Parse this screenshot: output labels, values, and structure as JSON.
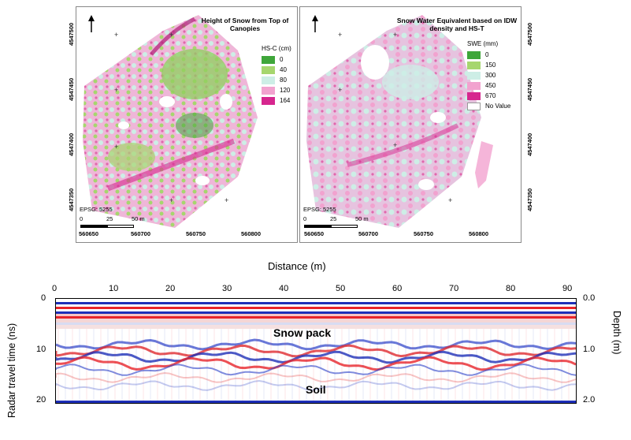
{
  "map_left": {
    "title": "Height of Snow from Top of Canopies",
    "legend_title": "HS-C (cm)",
    "legend": [
      {
        "label": "0",
        "color": "#3fa63a"
      },
      {
        "label": "40",
        "color": "#a6d66e"
      },
      {
        "label": "80",
        "color": "#cdeee6"
      },
      {
        "label": "120",
        "color": "#f2a2cf"
      },
      {
        "label": "164",
        "color": "#d6268e"
      }
    ],
    "epsg": "EPSG: 5255",
    "scale_labels": [
      "0",
      "25",
      "50 m"
    ],
    "easting_labels": [
      "560650",
      "560700",
      "560750",
      "560800"
    ],
    "northing_labels": [
      "4547500",
      "4547450",
      "4547400",
      "4547350"
    ]
  },
  "map_right": {
    "title": "Snow Water Equivalent based on IDW density and HS-T",
    "legend_title": "SWE (mm)",
    "legend": [
      {
        "label": "0",
        "color": "#3fa63a"
      },
      {
        "label": "150",
        "color": "#a6d66e"
      },
      {
        "label": "300",
        "color": "#cdeee6"
      },
      {
        "label": "450",
        "color": "#f2a2cf"
      },
      {
        "label": "670",
        "color": "#d6268e"
      },
      {
        "label": "No Value",
        "color": "#ffffff"
      }
    ],
    "epsg": "EPSG: 5255",
    "scale_labels": [
      "0",
      "25",
      "50 m"
    ],
    "easting_labels": [
      "560650",
      "560700",
      "560750",
      "560800"
    ],
    "northing_labels": [
      "4547500",
      "4547450",
      "4547400",
      "4547350"
    ]
  },
  "gpr": {
    "xlabel": "Distance (m)",
    "ylabel_left": "Radar travel time (ns)",
    "ylabel_right": "Depth (m)",
    "x_ticks": [
      "0",
      "10",
      "20",
      "30",
      "40",
      "50",
      "60",
      "70",
      "80",
      "90"
    ],
    "y_ticks_left": [
      "0",
      "10",
      "20"
    ],
    "y_ticks_right": [
      "0.0",
      "1.0",
      "2.0"
    ],
    "annotations": {
      "snowpack": "Snow pack",
      "soil": "Soil"
    }
  }
}
